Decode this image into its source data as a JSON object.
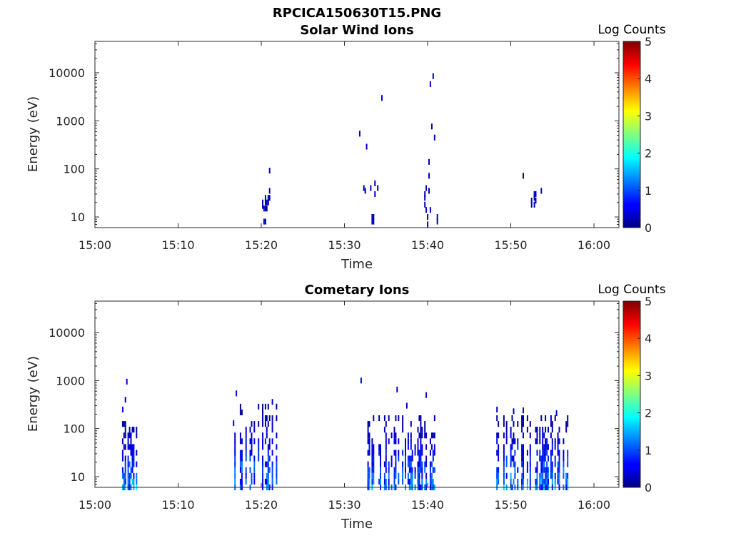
{
  "figure": {
    "title": "RPCICA150630T15.PNG"
  },
  "chart_data": [
    {
      "type": "heatmap",
      "title": "Solar Wind Ions",
      "xlabel": "Time",
      "ylabel": "Energy (eV)",
      "xlim": [
        "15:00",
        "16:03"
      ],
      "ylim": [
        6,
        45000
      ],
      "yscale": "log",
      "x_ticks": [
        "15:00",
        "15:10",
        "15:20",
        "15:30",
        "15:40",
        "15:50",
        "16:00"
      ],
      "y_ticks": [
        {
          "value": 10,
          "label": "10"
        },
        {
          "value": 100,
          "label": "100"
        },
        {
          "value": 1000,
          "label": "1000"
        },
        {
          "value": 10000,
          "label": "10000"
        }
      ],
      "colorbar": {
        "label": "Log Counts",
        "range": [
          0,
          5
        ],
        "ticks": [
          "0",
          "1",
          "2",
          "3",
          "4",
          "5"
        ],
        "colormap": "jet"
      },
      "points": [
        {
          "t": "15:20:10",
          "e": 20,
          "v": 0.3
        },
        {
          "t": "15:20:10",
          "e": 17,
          "v": 0.3
        },
        {
          "t": "15:20:20",
          "e": 15,
          "v": 0.3
        },
        {
          "t": "15:20:20",
          "e": 8,
          "v": 0.3
        },
        {
          "t": "15:20:30",
          "e": 25,
          "v": 0.3
        },
        {
          "t": "15:20:30",
          "e": 20,
          "v": 0.3
        },
        {
          "t": "15:20:30",
          "e": 15,
          "v": 0.3
        },
        {
          "t": "15:20:30",
          "e": 8,
          "v": 0.3
        },
        {
          "t": "15:20:40",
          "e": 20,
          "v": 0.3
        },
        {
          "t": "15:20:40",
          "e": 15,
          "v": 0.3
        },
        {
          "t": "15:20:50",
          "e": 25,
          "v": 0.3
        },
        {
          "t": "15:20:50",
          "e": 20,
          "v": 0.3
        },
        {
          "t": "15:21:00",
          "e": 35,
          "v": 0.3
        },
        {
          "t": "15:21:00",
          "e": 25,
          "v": 0.3
        },
        {
          "t": "15:21:00",
          "e": 92,
          "v": 0.3
        },
        {
          "t": "15:31:50",
          "e": 540,
          "v": 0.3
        },
        {
          "t": "15:32:40",
          "e": 290,
          "v": 0.3
        },
        {
          "t": "15:32:20",
          "e": 40,
          "v": 0.3
        },
        {
          "t": "15:32:30",
          "e": 35,
          "v": 0.3
        },
        {
          "t": "15:33:10",
          "e": 40,
          "v": 0.3
        },
        {
          "t": "15:33:20",
          "e": 10,
          "v": 0.3
        },
        {
          "t": "15:33:20",
          "e": 8,
          "v": 0.3
        },
        {
          "t": "15:33:30",
          "e": 10,
          "v": 0.3
        },
        {
          "t": "15:33:30",
          "e": 8,
          "v": 0.3
        },
        {
          "t": "15:33:40",
          "e": 30,
          "v": 0.3
        },
        {
          "t": "15:33:40",
          "e": 50,
          "v": 0.3
        },
        {
          "t": "15:34:00",
          "e": 40,
          "v": 0.3
        },
        {
          "t": "15:34:30",
          "e": 3000,
          "v": 0.3
        },
        {
          "t": "15:39:40",
          "e": 30,
          "v": 0.3
        },
        {
          "t": "15:39:40",
          "e": 25,
          "v": 0.3
        },
        {
          "t": "15:39:40",
          "e": 18,
          "v": 0.3
        },
        {
          "t": "15:39:50",
          "e": 14,
          "v": 0.3
        },
        {
          "t": "15:39:50",
          "e": 40,
          "v": 0.3
        },
        {
          "t": "15:40:00",
          "e": 10,
          "v": 0.3
        },
        {
          "t": "15:40:00",
          "e": 7,
          "v": 0.3
        },
        {
          "t": "15:40:10",
          "e": 35,
          "v": 0.3
        },
        {
          "t": "15:40:10",
          "e": 140,
          "v": 0.3
        },
        {
          "t": "15:40:10",
          "e": 72,
          "v": 0.3
        },
        {
          "t": "15:40:20",
          "e": 14,
          "v": 0.3
        },
        {
          "t": "15:40:20",
          "e": 5800,
          "v": 0.3
        },
        {
          "t": "15:40:30",
          "e": 760,
          "v": 0.3
        },
        {
          "t": "15:40:40",
          "e": 8500,
          "v": 0.3
        },
        {
          "t": "15:40:50",
          "e": 450,
          "v": 0.3
        },
        {
          "t": "15:41:10",
          "e": 10,
          "v": 0.3
        },
        {
          "t": "15:41:10",
          "e": 8,
          "v": 0.3
        },
        {
          "t": "15:51:30",
          "e": 72,
          "v": 0.3
        },
        {
          "t": "15:52:30",
          "e": 22,
          "v": 0.3
        },
        {
          "t": "15:52:30",
          "e": 18,
          "v": 0.3
        },
        {
          "t": "15:52:50",
          "e": 30,
          "v": 0.3
        },
        {
          "t": "15:52:50",
          "e": 25,
          "v": 0.3
        },
        {
          "t": "15:52:50",
          "e": 18,
          "v": 0.3
        },
        {
          "t": "15:53:00",
          "e": 30,
          "v": 0.3
        },
        {
          "t": "15:53:00",
          "e": 22,
          "v": 0.3
        },
        {
          "t": "15:53:40",
          "e": 35,
          "v": 0.3
        }
      ]
    },
    {
      "type": "heatmap",
      "title": "Cometary Ions",
      "xlabel": "Time",
      "ylabel": "Energy (eV)",
      "xlim": [
        "15:00",
        "16:03"
      ],
      "ylim": [
        6,
        45000
      ],
      "yscale": "log",
      "x_ticks": [
        "15:00",
        "15:10",
        "15:20",
        "15:30",
        "15:40",
        "15:50",
        "16:00"
      ],
      "y_ticks": [
        {
          "value": 10,
          "label": "10"
        },
        {
          "value": 100,
          "label": "100"
        },
        {
          "value": 1000,
          "label": "1000"
        },
        {
          "value": 10000,
          "label": "10000"
        }
      ],
      "colorbar": {
        "label": "Log Counts",
        "range": [
          0,
          5
        ],
        "ticks": [
          "0",
          "1",
          "2",
          "3",
          "4",
          "5"
        ],
        "colormap": "jet"
      },
      "bursts": [
        {
          "start": "15:03:00",
          "end": "15:05:00",
          "e_min": 6,
          "e_max": 130,
          "v_max": 1.9,
          "seed": 11,
          "extras": [
            {
              "t": "15:03:50",
              "e": 950,
              "v": 0.4
            },
            {
              "t": "15:03:40",
              "e": 400,
              "v": 0.4
            },
            {
              "t": "15:03:20",
              "e": 250,
              "v": 0.5
            }
          ]
        },
        {
          "start": "15:16:40",
          "end": "15:21:50",
          "e_min": 6,
          "e_max": 300,
          "v_max": 1.7,
          "seed": 23,
          "extras": [
            {
              "t": "15:17:00",
              "e": 540,
              "v": 0.4
            },
            {
              "t": "15:21:20",
              "e": 360,
              "v": 0.4
            },
            {
              "t": "15:16:40",
              "e": 130,
              "v": 0.4
            }
          ]
        },
        {
          "start": "15:32:40",
          "end": "15:40:50",
          "e_min": 6,
          "e_max": 200,
          "v_max": 1.6,
          "seed": 37,
          "extras": [
            {
              "t": "15:32:00",
              "e": 1000,
              "v": 0.4
            },
            {
              "t": "15:36:20",
              "e": 650,
              "v": 0.4
            },
            {
              "t": "15:39:50",
              "e": 500,
              "v": 0.4
            },
            {
              "t": "15:37:30",
              "e": 300,
              "v": 0.4
            }
          ]
        },
        {
          "start": "15:48:10",
          "end": "15:56:50",
          "e_min": 6,
          "e_max": 180,
          "v_max": 1.8,
          "seed": 51,
          "extras": [
            {
              "t": "15:48:20",
              "e": 250,
              "v": 0.4
            },
            {
              "t": "15:51:30",
              "e": 240,
              "v": 0.4
            },
            {
              "t": "15:55:30",
              "e": 210,
              "v": 0.4
            },
            {
              "t": "15:50:20",
              "e": 230,
              "v": 0.4
            }
          ]
        }
      ]
    }
  ]
}
